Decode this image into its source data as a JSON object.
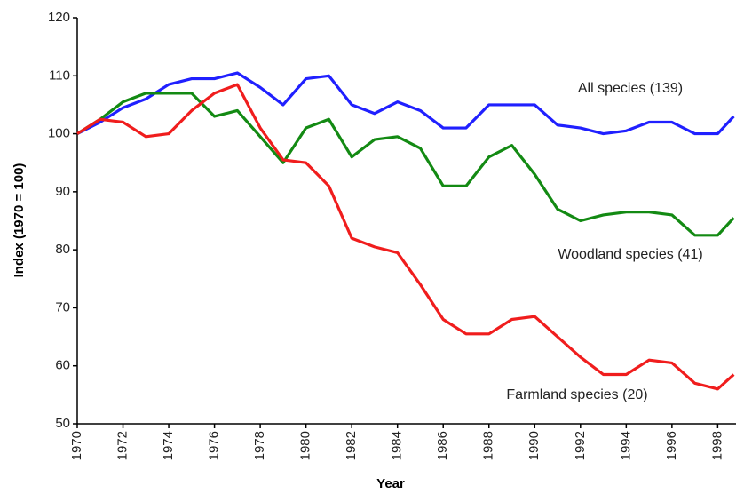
{
  "chart_data": {
    "type": "line",
    "x_label": "Year",
    "y_label": "Index (1970 = 100)",
    "x": [
      1970,
      1971,
      1972,
      1973,
      1974,
      1975,
      1976,
      1977,
      1978,
      1979,
      1980,
      1981,
      1982,
      1983,
      1984,
      1985,
      1986,
      1987,
      1988,
      1989,
      1990,
      1991,
      1992,
      1993,
      1994,
      1995,
      1996,
      1997,
      1998,
      1998.7
    ],
    "series": [
      {
        "name": "All species (139)",
        "color": "#2020ff",
        "values": [
          100,
          102,
          104.5,
          106,
          108.5,
          109.5,
          109.5,
          110.5,
          108,
          105,
          109.5,
          110,
          105,
          103.5,
          105.5,
          104,
          101,
          101,
          105,
          105,
          105,
          101.5,
          101,
          100,
          100.5,
          102,
          102,
          100,
          100,
          103
        ]
      },
      {
        "name": "Woodland species (41)",
        "color": "#138a13",
        "values": [
          100,
          102.5,
          105.5,
          107,
          107,
          107,
          103,
          104,
          99.5,
          95,
          101,
          102.5,
          96,
          99,
          99.5,
          97.5,
          91,
          91,
          96,
          98,
          93,
          87,
          85,
          86,
          86.5,
          86.5,
          86,
          82.5,
          82.5,
          85.5
        ]
      },
      {
        "name": "Farmland species (20)",
        "color": "#f01d1d",
        "values": [
          100,
          102.5,
          102,
          99.5,
          100,
          104,
          107,
          108.5,
          101,
          95.5,
          95,
          91,
          82,
          80.5,
          79.5,
          74,
          68,
          65.5,
          65.5,
          68,
          68.5,
          65,
          61.5,
          58.5,
          58.5,
          61,
          60.5,
          57,
          56,
          58.5
        ]
      }
    ],
    "xlim": [
      1970,
      1998.8
    ],
    "xticks": [
      1970,
      1972,
      1974,
      1976,
      1978,
      1980,
      1982,
      1984,
      1986,
      1988,
      1990,
      1992,
      1994,
      1996,
      1998
    ],
    "ylim": [
      50,
      120
    ],
    "yticks": [
      50,
      60,
      70,
      80,
      90,
      100,
      110,
      120
    ]
  }
}
